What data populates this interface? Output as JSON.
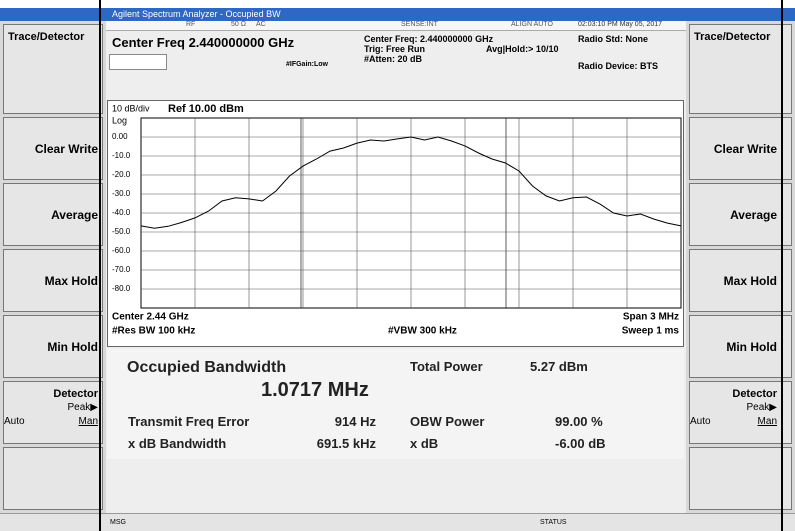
{
  "title_bar": "Agilent Spectrum Analyzer - Occupied BW",
  "status_row": {
    "rf": "RF",
    "impedance": "50 Ω",
    "coupling": "AC",
    "sense": "SENSE:INT",
    "align": "ALIGN AUTO",
    "datetime": "02:03:10 PM May 05, 2017"
  },
  "header": {
    "center_freq": "Center Freq 2.440000000 GHz",
    "ifgain": "#IFGain:Low",
    "center_freq_info": "Center Freq: 2.440000000 GHz",
    "trig": "Trig: Free Run",
    "avg_hold": "Avg|Hold:> 10/10",
    "atten": "#Atten: 20 dB",
    "radio_std": "Radio Std: None",
    "radio_device": "Radio Device: BTS"
  },
  "plot": {
    "type": "line",
    "scale": "10 dB/div",
    "ref": "Ref 10.00 dBm",
    "scale_type": "Log",
    "color": "#000000",
    "grid": true,
    "ylim": [
      -90,
      10
    ],
    "yticks": [
      {
        "value": 0,
        "label": "0.00"
      },
      {
        "value": -10,
        "label": "-10.0"
      },
      {
        "value": -20,
        "label": "-20.0"
      },
      {
        "value": -30,
        "label": "-30.0"
      },
      {
        "value": -40,
        "label": "-40.0"
      },
      {
        "value": -50,
        "label": "-50.0"
      },
      {
        "value": -60,
        "label": "-60.0"
      },
      {
        "value": -70,
        "label": "-70.0"
      },
      {
        "value": -80,
        "label": "-80.0"
      }
    ],
    "values": [
      -46.8,
      -48,
      -47,
      -45,
      -42.6,
      -39,
      -33.7,
      -32,
      -32.6,
      -33.7,
      -28.4,
      -20.5,
      -15.3,
      -11.6,
      -7.4,
      -5.8,
      -3.2,
      -1.6,
      -2.1,
      -1,
      0,
      -1.6,
      0,
      -2.1,
      -4.7,
      -8.4,
      -11.6,
      -13.7,
      -17.9,
      -25.8,
      -31,
      -33.7,
      -32,
      -31.6,
      -35.3,
      -40,
      -41.6,
      -40.5,
      -43.2,
      -45.3,
      -46.8
    ],
    "center": "Center  2.44 GHz",
    "res_bw": "#Res BW  100 kHz",
    "vbw": "#VBW  300 kHz",
    "span": "Span 3 MHz",
    "sweep": "Sweep  1 ms"
  },
  "results": {
    "obw_label": "Occupied Bandwidth",
    "obw_value": "1.0717 MHz",
    "total_power_label": "Total Power",
    "total_power": "5.27 dBm",
    "tfe_label": "Transmit Freq Error",
    "tfe": "914 Hz",
    "obw_power_label": "OBW Power",
    "obw_power": "99.00 %",
    "xdb_bw_label": "x dB Bandwidth",
    "xdb_bw": "691.5 kHz",
    "xdb_label": "x dB",
    "xdb": "-6.00 dB"
  },
  "left_panel": {
    "title": "Trace/Detector",
    "keys": [
      "Clear Write",
      "Average",
      "Max Hold",
      "Min Hold"
    ],
    "detector": {
      "label": "Detector",
      "value": "Peak▶",
      "auto": "Auto",
      "man": "Man"
    }
  },
  "right_panel": {
    "title": "Trace/Detector",
    "keys": [
      "Clear Write",
      "Average",
      "Max Hold",
      "Min Hold"
    ],
    "detector": {
      "label": "Detector",
      "value": "Peak▶",
      "auto": "Auto",
      "man": "Man"
    }
  },
  "status_bar": {
    "msg": "MSG",
    "status": "STATUS"
  }
}
